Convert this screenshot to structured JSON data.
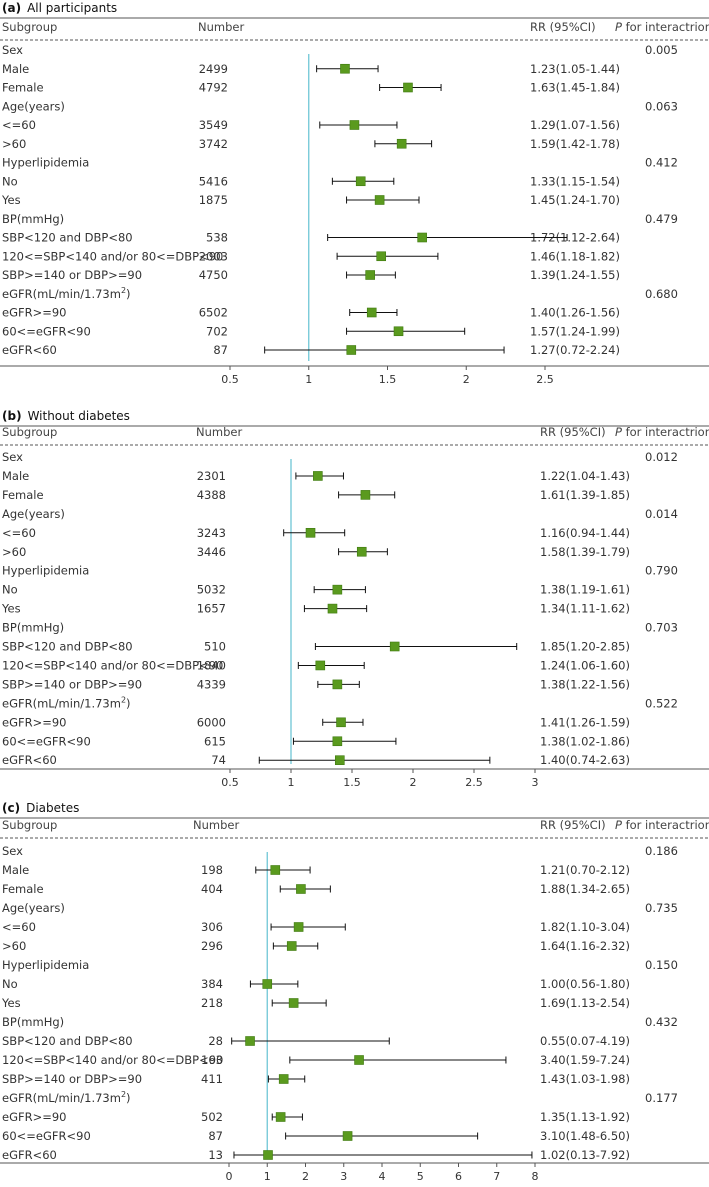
{
  "chart_data": [
    {
      "type": "forest",
      "panel": "(a)",
      "title": "All participants",
      "headers": {
        "subgroup": "Subgroup",
        "number": "Number",
        "rr": "RR (95%CI)",
        "p_italic": "P",
        "p_rest": " for interactrion"
      },
      "xticks": [
        0.5,
        1,
        1.5,
        2,
        2.5
      ],
      "xlim": [
        0.5,
        2.5
      ],
      "reference": 1,
      "rows": [
        {
          "label": "Sex",
          "p": "0.005"
        },
        {
          "label": "Male",
          "n": "2499",
          "rr": 1.23,
          "lo": 1.05,
          "hi": 1.44,
          "text": "1.23(1.05-1.44)"
        },
        {
          "label": "Female",
          "n": "4792",
          "rr": 1.63,
          "lo": 1.45,
          "hi": 1.84,
          "text": "1.63(1.45-1.84)"
        },
        {
          "label": "Age(years)",
          "p": "0.063"
        },
        {
          "label": "<=60",
          "n": "3549",
          "rr": 1.29,
          "lo": 1.07,
          "hi": 1.56,
          "text": "1.29(1.07-1.56)"
        },
        {
          "label": ">60",
          "n": "3742",
          "rr": 1.59,
          "lo": 1.42,
          "hi": 1.78,
          "text": "1.59(1.42-1.78)"
        },
        {
          "label": "Hyperlipidemia",
          "p": "0.412"
        },
        {
          "label": "No",
          "n": "5416",
          "rr": 1.33,
          "lo": 1.15,
          "hi": 1.54,
          "text": "1.33(1.15-1.54)"
        },
        {
          "label": "Yes",
          "n": "1875",
          "rr": 1.45,
          "lo": 1.24,
          "hi": 1.7,
          "text": "1.45(1.24-1.70)"
        },
        {
          "label": "BP(mmHg)",
          "p": "0.479"
        },
        {
          "label": "SBP<120 and DBP<80",
          "n": "538",
          "rr": 1.72,
          "lo": 1.12,
          "hi": 2.64,
          "text": "1.72(1.12-2.64)"
        },
        {
          "label": "120<=SBP<140 and/or 80<=DBP<90",
          "n": "2003",
          "rr": 1.46,
          "lo": 1.18,
          "hi": 1.82,
          "text": "1.46(1.18-1.82)"
        },
        {
          "label": "SBP>=140 or DBP>=90",
          "n": "4750",
          "rr": 1.39,
          "lo": 1.24,
          "hi": 1.55,
          "text": "1.39(1.24-1.55)"
        },
        {
          "label": "eGFR(mL/min/1.73m",
          "sup": "2",
          "label_tail": ")",
          "p": "0.680"
        },
        {
          "label": "eGFR>=90",
          "n": "6502",
          "rr": 1.4,
          "lo": 1.26,
          "hi": 1.56,
          "text": "1.40(1.26-1.56)"
        },
        {
          "label": "60<=eGFR<90",
          "n": "702",
          "rr": 1.57,
          "lo": 1.24,
          "hi": 1.99,
          "text": "1.57(1.24-1.99)"
        },
        {
          "label": "eGFR<60",
          "n": "87",
          "rr": 1.27,
          "lo": 0.72,
          "hi": 2.24,
          "text": "1.27(0.72-2.24)"
        }
      ]
    },
    {
      "type": "forest",
      "panel": "(b)",
      "title": "Without diabetes",
      "headers": {
        "subgroup": "Subgroup",
        "number": "Number",
        "rr": "RR (95%CI)",
        "p_italic": "P",
        "p_rest": " for interactrion"
      },
      "xticks": [
        0.5,
        1,
        1.5,
        2,
        2.5,
        3
      ],
      "xlim": [
        0.5,
        3
      ],
      "reference": 1,
      "rows": [
        {
          "label": "Sex",
          "p": "0.012"
        },
        {
          "label": "Male",
          "n": "2301",
          "rr": 1.22,
          "lo": 1.04,
          "hi": 1.43,
          "text": "1.22(1.04-1.43)"
        },
        {
          "label": "Female",
          "n": "4388",
          "rr": 1.61,
          "lo": 1.39,
          "hi": 1.85,
          "text": "1.61(1.39-1.85)"
        },
        {
          "label": "Age(years)",
          "p": "0.014"
        },
        {
          "label": "<=60",
          "n": "3243",
          "rr": 1.16,
          "lo": 0.94,
          "hi": 1.44,
          "text": "1.16(0.94-1.44)"
        },
        {
          "label": ">60",
          "n": "3446",
          "rr": 1.58,
          "lo": 1.39,
          "hi": 1.79,
          "text": "1.58(1.39-1.79)"
        },
        {
          "label": "Hyperlipidemia",
          "p": "0.790"
        },
        {
          "label": "No",
          "n": "5032",
          "rr": 1.38,
          "lo": 1.19,
          "hi": 1.61,
          "text": "1.38(1.19-1.61)"
        },
        {
          "label": "Yes",
          "n": "1657",
          "rr": 1.34,
          "lo": 1.11,
          "hi": 1.62,
          "text": "1.34(1.11-1.62)"
        },
        {
          "label": "BP(mmHg)",
          "p": "0.703"
        },
        {
          "label": "SBP<120 and DBP<80",
          "n": "510",
          "rr": 1.85,
          "lo": 1.2,
          "hi": 2.85,
          "text": "1.85(1.20-2.85)"
        },
        {
          "label": "120<=SBP<140 and/or 80<=DBP<90",
          "n": "1840",
          "rr": 1.24,
          "lo": 1.06,
          "hi": 1.6,
          "text": "1.24(1.06-1.60)"
        },
        {
          "label": "SBP>=140 or DBP>=90",
          "n": "4339",
          "rr": 1.38,
          "lo": 1.22,
          "hi": 1.56,
          "text": "1.38(1.22-1.56)"
        },
        {
          "label": "eGFR(mL/min/1.73m",
          "sup": "2",
          "label_tail": ")",
          "p": "0.522"
        },
        {
          "label": "eGFR>=90",
          "n": "6000",
          "rr": 1.41,
          "lo": 1.26,
          "hi": 1.59,
          "text": "1.41(1.26-1.59)"
        },
        {
          "label": "60<=eGFR<90",
          "n": "615",
          "rr": 1.38,
          "lo": 1.02,
          "hi": 1.86,
          "text": "1.38(1.02-1.86)"
        },
        {
          "label": "eGFR<60",
          "n": "74",
          "rr": 1.4,
          "lo": 0.74,
          "hi": 2.63,
          "text": "1.40(0.74-2.63)"
        }
      ]
    },
    {
      "type": "forest",
      "panel": "(c)",
      "title": "Diabetes",
      "headers": {
        "subgroup": "Subgroup",
        "number": "Number",
        "rr": "RR (95%CI)",
        "p_italic": "P",
        "p_rest": " for interactrion"
      },
      "xticks": [
        0,
        1,
        2,
        3,
        4,
        5,
        6,
        7,
        8
      ],
      "xlim": [
        0,
        8
      ],
      "reference": 1,
      "rows": [
        {
          "label": "Sex",
          "p": "0.186"
        },
        {
          "label": "Male",
          "n": "198",
          "rr": 1.21,
          "lo": 0.7,
          "hi": 2.12,
          "text": "1.21(0.70-2.12)"
        },
        {
          "label": "Female",
          "n": "404",
          "rr": 1.88,
          "lo": 1.34,
          "hi": 2.65,
          "text": "1.88(1.34-2.65)"
        },
        {
          "label": "Age(years)",
          "p": "0.735"
        },
        {
          "label": "<=60",
          "n": "306",
          "rr": 1.82,
          "lo": 1.1,
          "hi": 3.04,
          "text": "1.82(1.10-3.04)"
        },
        {
          "label": ">60",
          "n": "296",
          "rr": 1.64,
          "lo": 1.16,
          "hi": 2.32,
          "text": "1.64(1.16-2.32)"
        },
        {
          "label": "Hyperlipidemia",
          "p": "0.150"
        },
        {
          "label": "No",
          "n": "384",
          "rr": 1.0,
          "lo": 0.56,
          "hi": 1.8,
          "text": "1.00(0.56-1.80)"
        },
        {
          "label": "Yes",
          "n": "218",
          "rr": 1.69,
          "lo": 1.13,
          "hi": 2.54,
          "text": "1.69(1.13-2.54)"
        },
        {
          "label": "BP(mmHg)",
          "p": "0.432"
        },
        {
          "label": "SBP<120 and DBP<80",
          "n": "28",
          "rr": 0.55,
          "lo": 0.07,
          "hi": 4.19,
          "text": "0.55(0.07-4.19)"
        },
        {
          "label": "120<=SBP<140 and/or 80<=DBP<90",
          "n": "163",
          "rr": 3.4,
          "lo": 1.59,
          "hi": 7.24,
          "text": "3.40(1.59-7.24)"
        },
        {
          "label": "SBP>=140 or DBP>=90",
          "n": "411",
          "rr": 1.43,
          "lo": 1.03,
          "hi": 1.98,
          "text": "1.43(1.03-1.98)"
        },
        {
          "label": "eGFR(mL/min/1.73m",
          "sup": "2",
          "label_tail": ")",
          "p": "0.177"
        },
        {
          "label": "eGFR>=90",
          "n": "502",
          "rr": 1.35,
          "lo": 1.13,
          "hi": 1.92,
          "text": "1.35(1.13-1.92)"
        },
        {
          "label": "60<=eGFR<90",
          "n": "87",
          "rr": 3.1,
          "lo": 1.48,
          "hi": 6.5,
          "text": "3.10(1.48-6.50)"
        },
        {
          "label": "eGFR<60",
          "n": "13",
          "rr": 1.02,
          "lo": 0.13,
          "hi": 7.92,
          "text": "1.02(0.13-7.92)"
        }
      ]
    }
  ],
  "colors": {
    "marker": "#5a9a1e",
    "marker_edge": "#3f7a10",
    "reference_line": "#6fc6d6",
    "ci_line": "#111111",
    "rule": "#555555"
  }
}
